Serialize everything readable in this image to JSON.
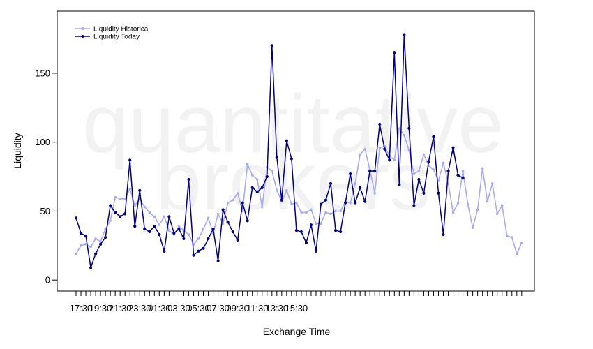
{
  "watermark": {
    "line1": "quantitative",
    "line2": "brokers"
  },
  "chart_data": {
    "type": "line",
    "xlabel": "Exchange Time",
    "ylabel": "Liquidity",
    "ylim": [
      -8,
      195
    ],
    "yticks": [
      0,
      50,
      100,
      150
    ],
    "grid": false,
    "legend_position": "top-left",
    "x_tick_labels": [
      "17:30",
      "19:30",
      "21:30",
      "23:30",
      "01:30",
      "03:30",
      "05:30",
      "07:30",
      "09:30",
      "11:30",
      "13:30",
      "15:30"
    ],
    "x_tick_label_every": 4,
    "x_tick_label_start": 1,
    "series": [
      {
        "name": "Liquidity Historical",
        "color": "#aaaaee",
        "values": [
          19,
          25,
          26,
          24,
          30,
          28,
          37,
          43,
          60,
          59,
          59,
          66,
          54,
          59,
          53,
          49,
          46,
          40,
          46,
          36,
          33,
          39,
          36,
          33,
          26,
          30,
          37,
          45,
          34,
          48,
          41,
          56,
          58,
          63,
          50,
          84,
          76,
          73,
          53,
          82,
          79,
          65,
          57,
          65,
          55,
          56,
          49,
          49,
          51,
          41,
          41,
          49,
          48,
          50,
          50,
          57,
          56,
          70,
          91,
          95,
          80,
          63,
          96,
          97,
          90,
          87,
          110,
          105,
          94,
          77,
          79,
          91,
          83,
          80,
          72,
          85,
          70,
          49,
          56,
          79,
          55,
          38,
          51,
          81,
          57,
          70,
          48,
          54,
          32,
          31,
          19,
          27
        ]
      },
      {
        "name": "Liquidity Today",
        "color": "#000080",
        "values": [
          45,
          34,
          32,
          9,
          19,
          26,
          31,
          54,
          49,
          46,
          48,
          87,
          39,
          65,
          37,
          35,
          39,
          33,
          21,
          46,
          34,
          37,
          30,
          73,
          18,
          21,
          23,
          30,
          37,
          14,
          51,
          42,
          35,
          29,
          56,
          43,
          67,
          64,
          67,
          75,
          170,
          89,
          58,
          101,
          88,
          36,
          35,
          27,
          40,
          21,
          55,
          58,
          70,
          36,
          35,
          56,
          77,
          56,
          67,
          57,
          79,
          79,
          113,
          95,
          87,
          165,
          69,
          178,
          110,
          54,
          73,
          63,
          86,
          104,
          63,
          33,
          79,
          96,
          76,
          74
        ]
      }
    ]
  }
}
